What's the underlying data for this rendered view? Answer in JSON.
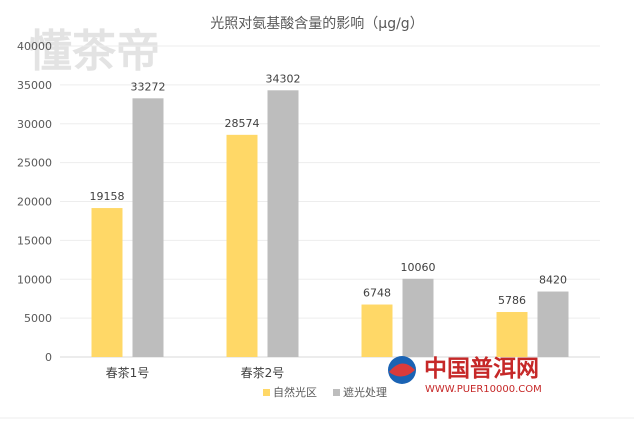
{
  "chart_data": {
    "type": "bar",
    "title": "光照对氨基酸含量的影响（μg/g）",
    "categories": [
      "春茶1号",
      "春茶2号",
      "",
      ""
    ],
    "series": [
      {
        "name": "自然光区",
        "values": [
          19158,
          28574,
          6748,
          5786
        ],
        "color": "#FFD867"
      },
      {
        "name": "遮光处理",
        "values": [
          33272,
          34302,
          10060,
          8420
        ],
        "color": "#BDBDBD"
      }
    ],
    "ylim": [
      0,
      40000
    ],
    "yticks": [
      "0",
      "5000",
      "10000",
      "15000",
      "20000",
      "25000",
      "30000",
      "35000",
      "40000"
    ],
    "grid": true,
    "legend_position": "bottom"
  },
  "watermarks": {
    "top_left": "懂茶帝",
    "bottom_right_main": "中国普洱网",
    "bottom_right_url": "WWW.PUER10000.COM"
  }
}
